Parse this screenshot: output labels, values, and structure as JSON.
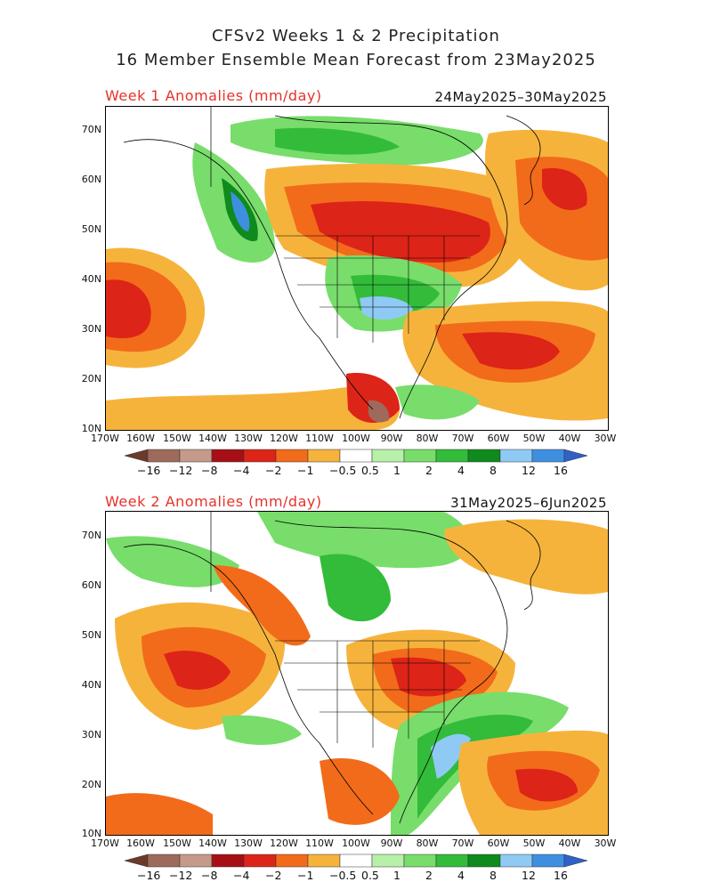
{
  "title": {
    "line1": "CFSv2 Weeks 1 & 2 Precipitation",
    "line2": "16 Member Ensemble Mean Forecast from 23May2025"
  },
  "panels": [
    {
      "label": "Week 1 Anomalies (mm/day)",
      "dates": "24May2025–30May2025"
    },
    {
      "label": "Week 2 Anomalies (mm/day)",
      "dates": "31May2025–6Jun2025"
    }
  ],
  "lat_labels": [
    "70N",
    "60N",
    "50N",
    "40N",
    "30N",
    "20N",
    "10N"
  ],
  "lon_labels": [
    "170W",
    "160W",
    "150W",
    "140W",
    "130W",
    "120W",
    "110W",
    "100W",
    "90W",
    "80W",
    "70W",
    "60W",
    "50W",
    "40W",
    "30W"
  ],
  "legend": {
    "labels": [
      "−16",
      "−12",
      "−8",
      "−4",
      "−2",
      "−1",
      "−0.5",
      "0.5",
      "1",
      "2",
      "4",
      "8",
      "12",
      "16"
    ],
    "colors": [
      "#6b3a2a",
      "#9e6a5b",
      "#c59a8a",
      "#a50f15",
      "#dd2418",
      "#f26b1a",
      "#f6b33c",
      "#ffffff",
      "#b7f0a8",
      "#78dd6b",
      "#33bb3a",
      "#0f8a1c",
      "#8fcaf5",
      "#3f8fe0",
      "#2f61c9"
    ]
  }
}
